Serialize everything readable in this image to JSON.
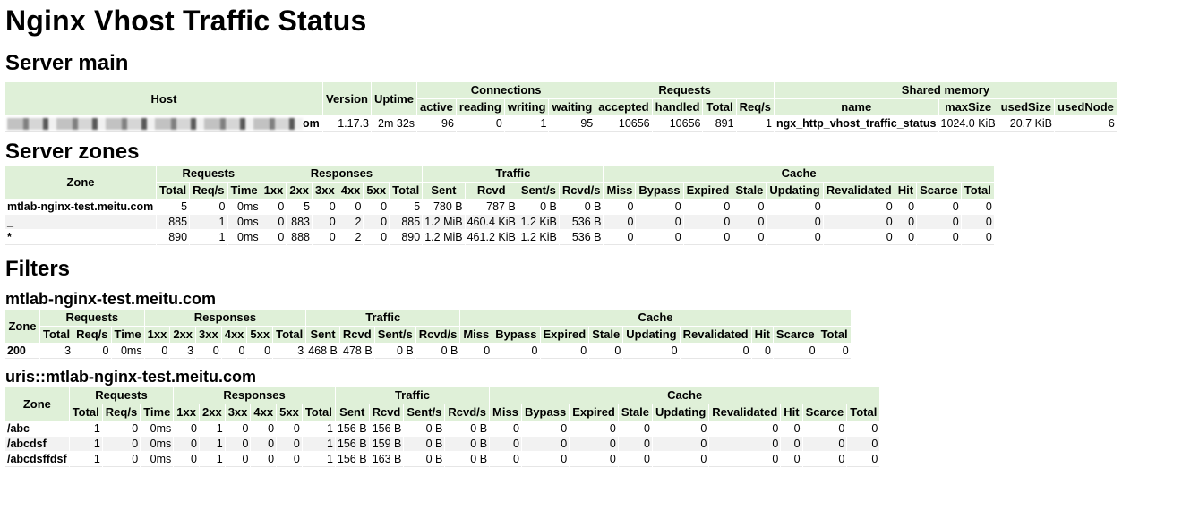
{
  "title": "Nginx Vhost Traffic Status",
  "server_main": {
    "heading": "Server main",
    "head_row1": [
      "Host",
      "Version",
      "Uptime",
      "Connections",
      "Requests",
      "Shared memory"
    ],
    "head_row2": [
      "active",
      "reading",
      "writing",
      "waiting",
      "accepted",
      "handled",
      "Total",
      "Req/s",
      "name",
      "maxSize",
      "usedSize",
      "usedNode"
    ],
    "row": {
      "host_tail": "om",
      "cells": [
        "1.17.3",
        "2m 32s",
        "96",
        "0",
        "1",
        "95",
        "10656",
        "10656",
        "891",
        "1",
        "ngx_http_vhost_traffic_status",
        "1024.0 KiB",
        "20.7 KiB",
        "6"
      ]
    }
  },
  "server_zones": {
    "heading": "Server zones",
    "rows": [
      [
        "mtlab-nginx-test.meitu.com",
        "5",
        "0",
        "0ms",
        "0",
        "5",
        "0",
        "0",
        "0",
        "5",
        "780 B",
        "787 B",
        "0 B",
        "0 B",
        "0",
        "0",
        "0",
        "0",
        "0",
        "0",
        "0",
        "0",
        "0"
      ],
      [
        "_",
        "885",
        "1",
        "0ms",
        "0",
        "883",
        "0",
        "2",
        "0",
        "885",
        "1.2 MiB",
        "460.4 KiB",
        "1.2 KiB",
        "536 B",
        "0",
        "0",
        "0",
        "0",
        "0",
        "0",
        "0",
        "0",
        "0"
      ],
      [
        "*",
        "890",
        "1",
        "0ms",
        "0",
        "888",
        "0",
        "2",
        "0",
        "890",
        "1.2 MiB",
        "461.2 KiB",
        "1.2 KiB",
        "536 B",
        "0",
        "0",
        "0",
        "0",
        "0",
        "0",
        "0",
        "0",
        "0"
      ]
    ]
  },
  "zone_headers": {
    "row1": [
      "Zone",
      "Requests",
      "Responses",
      "Traffic",
      "Cache"
    ],
    "row2": [
      "Total",
      "Req/s",
      "Time",
      "1xx",
      "2xx",
      "3xx",
      "4xx",
      "5xx",
      "Total",
      "Sent",
      "Rcvd",
      "Sent/s",
      "Rcvd/s",
      "Miss",
      "Bypass",
      "Expired",
      "Stale",
      "Updating",
      "Revalidated",
      "Hit",
      "Scarce",
      "Total"
    ]
  },
  "filters": {
    "heading": "Filters",
    "groups": [
      {
        "name": "mtlab-nginx-test.meitu.com",
        "rows": [
          [
            "200",
            "3",
            "0",
            "0ms",
            "0",
            "3",
            "0",
            "0",
            "0",
            "3",
            "468 B",
            "478 B",
            "0 B",
            "0 B",
            "0",
            "0",
            "0",
            "0",
            "0",
            "0",
            "0",
            "0",
            "0"
          ]
        ]
      },
      {
        "name": "uris::mtlab-nginx-test.meitu.com",
        "rows": [
          [
            "/abc",
            "1",
            "0",
            "0ms",
            "0",
            "1",
            "0",
            "0",
            "0",
            "1",
            "156 B",
            "156 B",
            "0 B",
            "0 B",
            "0",
            "0",
            "0",
            "0",
            "0",
            "0",
            "0",
            "0",
            "0"
          ],
          [
            "/abcdsf",
            "1",
            "0",
            "0ms",
            "0",
            "1",
            "0",
            "0",
            "0",
            "1",
            "156 B",
            "159 B",
            "0 B",
            "0 B",
            "0",
            "0",
            "0",
            "0",
            "0",
            "0",
            "0",
            "0",
            "0"
          ],
          [
            "/abcdsffdsf",
            "1",
            "0",
            "0ms",
            "0",
            "1",
            "0",
            "0",
            "0",
            "1",
            "156 B",
            "163 B",
            "0 B",
            "0 B",
            "0",
            "0",
            "0",
            "0",
            "0",
            "0",
            "0",
            "0",
            "0"
          ]
        ]
      }
    ]
  },
  "colors": {
    "header_bg": "#dff0d8",
    "alt_row_bg": "#f2f2f2"
  }
}
